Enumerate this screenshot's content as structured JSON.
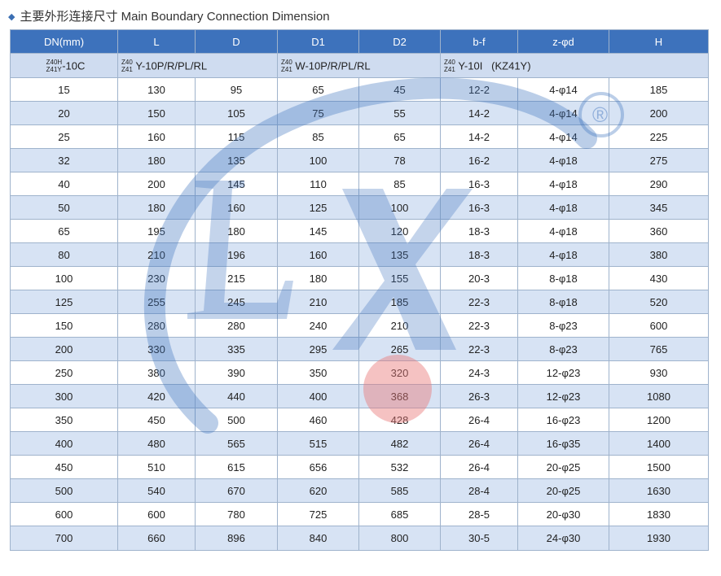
{
  "title": "主要外形连接尺寸 Main Boundary Connection Dimension",
  "headers": [
    "DN(mm)",
    "L",
    "D",
    "D1",
    "D2",
    "b-f",
    "z-φd",
    "H"
  ],
  "series_row": {
    "g1_small1": "Z40H",
    "g1_small2": "Z41Y",
    "g1_main": "-10C",
    "g2_small1": "Z40",
    "g2_small2": "Z41",
    "g2_main": "Y-10P/R/PL/RL",
    "g3_small1": "Z40",
    "g3_small2": "Z41",
    "g3_main": "W-10P/R/PL/RL",
    "g4_small1": "Z40",
    "g4_small2": "Z41",
    "g4_main": "Y-10I",
    "g4_extra": "(KZ41Y)"
  },
  "rows": [
    [
      "15",
      "130",
      "95",
      "65",
      "45",
      "12-2",
      "4-φ14",
      "185"
    ],
    [
      "20",
      "150",
      "105",
      "75",
      "55",
      "14-2",
      "4-φ14",
      "200"
    ],
    [
      "25",
      "160",
      "115",
      "85",
      "65",
      "14-2",
      "4-φ14",
      "225"
    ],
    [
      "32",
      "180",
      "135",
      "100",
      "78",
      "16-2",
      "4-φ18",
      "275"
    ],
    [
      "40",
      "200",
      "145",
      "110",
      "85",
      "16-3",
      "4-φ18",
      "290"
    ],
    [
      "50",
      "180",
      "160",
      "125",
      "100",
      "16-3",
      "4-φ18",
      "345"
    ],
    [
      "65",
      "195",
      "180",
      "145",
      "120",
      "18-3",
      "4-φ18",
      "360"
    ],
    [
      "80",
      "210",
      "196",
      "160",
      "135",
      "18-3",
      "4-φ18",
      "380"
    ],
    [
      "100",
      "230",
      "215",
      "180",
      "155",
      "20-3",
      "8-φ18",
      "430"
    ],
    [
      "125",
      "255",
      "245",
      "210",
      "185",
      "22-3",
      "8-φ18",
      "520"
    ],
    [
      "150",
      "280",
      "280",
      "240",
      "210",
      "22-3",
      "8-φ23",
      "600"
    ],
    [
      "200",
      "330",
      "335",
      "295",
      "265",
      "22-3",
      "8-φ23",
      "765"
    ],
    [
      "250",
      "380",
      "390",
      "350",
      "320",
      "24-3",
      "12-φ23",
      "930"
    ],
    [
      "300",
      "420",
      "440",
      "400",
      "368",
      "26-3",
      "12-φ23",
      "1080"
    ],
    [
      "350",
      "450",
      "500",
      "460",
      "428",
      "26-4",
      "16-φ23",
      "1200"
    ],
    [
      "400",
      "480",
      "565",
      "515",
      "482",
      "26-4",
      "16-φ35",
      "1400"
    ],
    [
      "450",
      "510",
      "615",
      "656",
      "532",
      "26-4",
      "20-φ25",
      "1500"
    ],
    [
      "500",
      "540",
      "670",
      "620",
      "585",
      "28-4",
      "20-φ25",
      "1630"
    ],
    [
      "600",
      "600",
      "780",
      "725",
      "685",
      "28-5",
      "20-φ30",
      "1830"
    ],
    [
      "700",
      "660",
      "896",
      "840",
      "800",
      "30-5",
      "24-φ30",
      "1930"
    ]
  ],
  "watermark": {
    "letters": "LX",
    "registered": "®",
    "circle_color": "#e87878",
    "mark_color": "#3d72bc"
  }
}
